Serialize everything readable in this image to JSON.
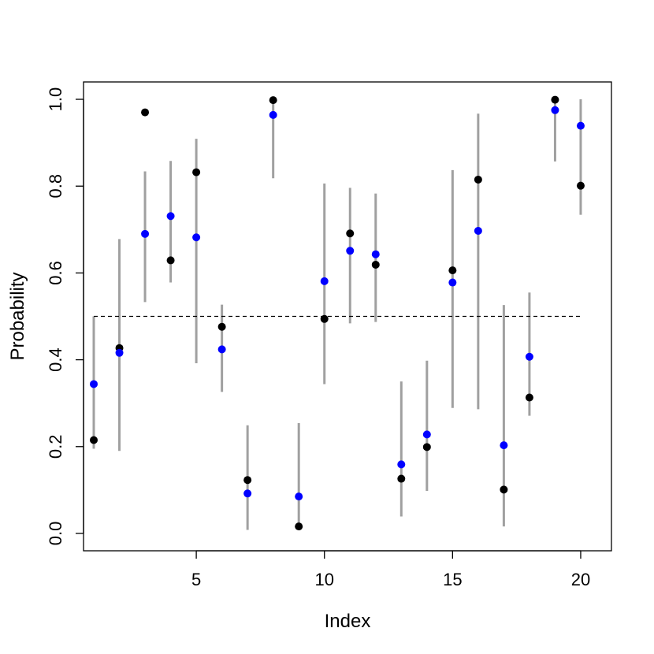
{
  "chart_data": {
    "type": "scatter",
    "title": "",
    "xlabel": "Index",
    "ylabel": "Probability",
    "xlim": [
      0.6,
      21.2
    ],
    "ylim": [
      -0.04,
      1.04
    ],
    "xticks": [
      "5",
      "10",
      "15",
      "20"
    ],
    "yticks": [
      "0.0",
      "0.2",
      "0.4",
      "0.6",
      "0.8",
      "1.0"
    ],
    "grid": false,
    "legend": "none",
    "reference_line": {
      "y": 0.5,
      "x_from": 1,
      "x_to": 20,
      "style": "dashed"
    },
    "colors": {
      "black_points": "#000000",
      "blue_points": "#0000ff",
      "intervals": "#a0a0a0",
      "reference_line": "#000000"
    },
    "x": [
      1,
      2,
      3,
      4,
      5,
      6,
      7,
      8,
      9,
      10,
      11,
      12,
      13,
      14,
      15,
      16,
      17,
      18,
      19,
      20
    ],
    "series": [
      {
        "values": [
          0.215,
          0.427,
          0.97,
          0.629,
          0.832,
          0.476,
          0.123,
          0.998,
          0.016,
          0.494,
          0.691,
          0.619,
          0.126,
          0.199,
          0.606,
          0.815,
          0.101,
          0.313,
          0.999,
          0.801
        ]
      },
      {
        "values": [
          0.344,
          0.416,
          0.69,
          0.731,
          0.682,
          0.424,
          0.092,
          0.964,
          0.085,
          0.581,
          0.651,
          0.643,
          0.159,
          0.228,
          0.578,
          0.697,
          0.203,
          0.407,
          0.975,
          0.939
        ]
      }
    ],
    "intervals": [
      [
        0.195,
        0.5
      ],
      [
        0.19,
        0.678
      ],
      [
        0.533,
        0.834
      ],
      [
        0.578,
        0.858
      ],
      [
        0.392,
        0.909
      ],
      [
        0.326,
        0.527
      ],
      [
        0.008,
        0.249
      ],
      [
        0.818,
        0.998
      ],
      [
        0.016,
        0.254
      ],
      [
        0.344,
        0.806
      ],
      [
        0.484,
        0.796
      ],
      [
        0.487,
        0.783
      ],
      [
        0.039,
        0.35
      ],
      [
        0.098,
        0.398
      ],
      [
        0.289,
        0.837
      ],
      [
        0.286,
        0.967
      ],
      [
        0.016,
        0.526
      ],
      [
        0.271,
        0.555
      ],
      [
        0.857,
        0.999
      ],
      [
        0.734,
        1.0
      ]
    ]
  }
}
